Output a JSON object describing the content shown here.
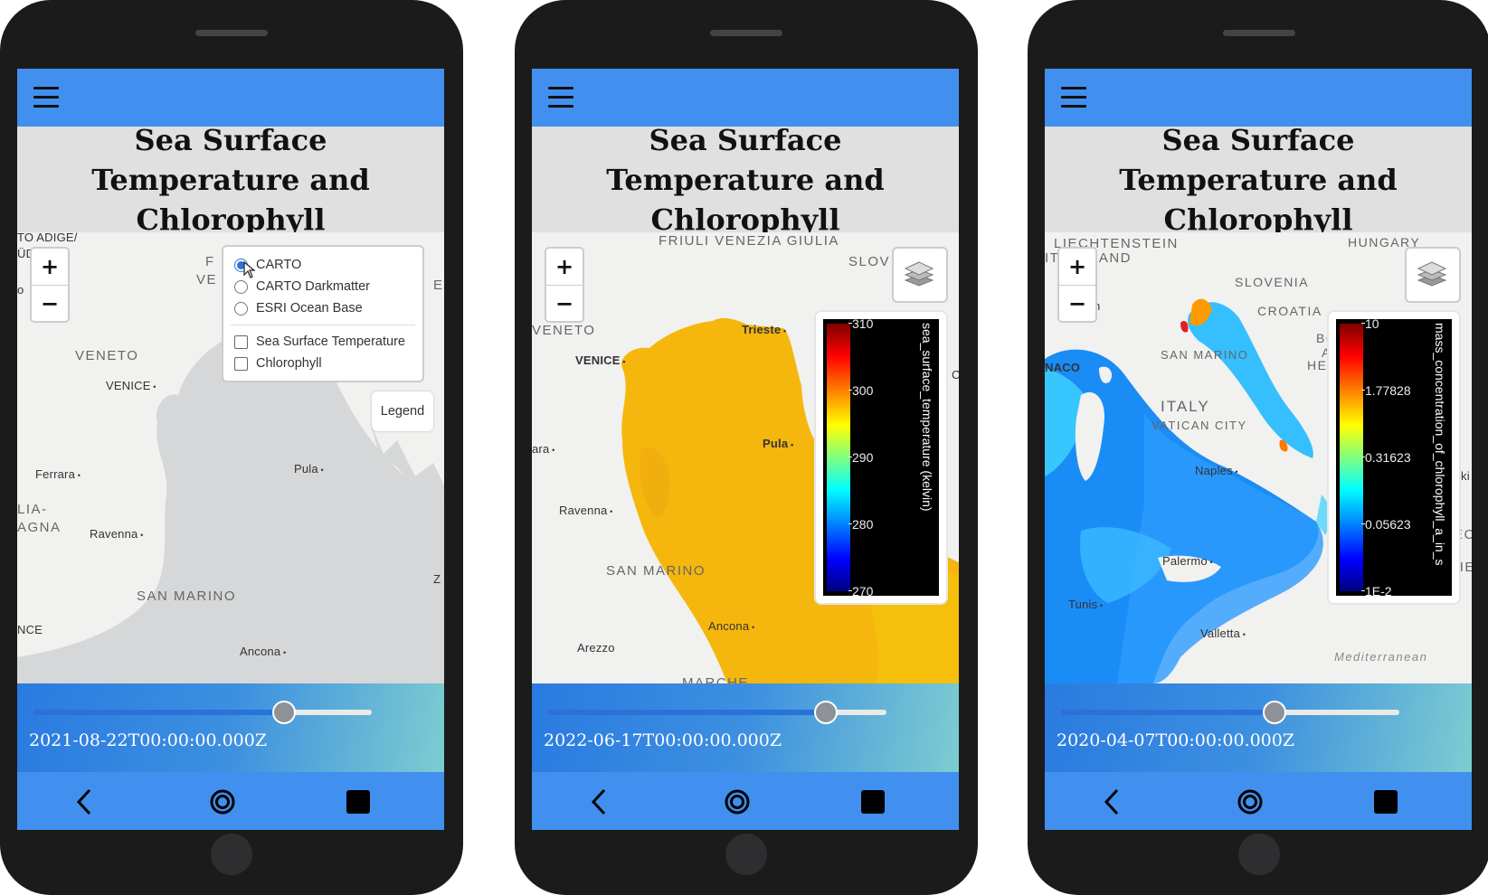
{
  "phones": [
    {
      "title": "Sea Surface Temperature and Chlorophyll",
      "time": "2021-08-22T00:00:00.000Z",
      "slider_fraction": 0.74,
      "places": {
        "p0": "TO ADIGE/",
        "p1": "ÜDTIROL",
        "p2": "VENETO",
        "p3": "VENICE",
        "p4": "Ferrara",
        "p5": "LIA-",
        "p6": "AGNA",
        "p7": "Ravenna",
        "p8": "SAN MARINO",
        "p9": "Ancona",
        "p10": "Pula",
        "p11": "NCE",
        "p12": "F",
        "p13": "VE",
        "p14": "Z",
        "p15": "E",
        "p16": "o"
      },
      "layers": {
        "base": [
          "CARTO",
          "CARTO Darkmatter",
          "ESRI Ocean Base"
        ],
        "overlays": [
          "Sea Surface Temperature",
          "Chlorophyll"
        ],
        "selected_base": "CARTO"
      },
      "legend_label": "Legend"
    },
    {
      "title": "Sea Surface Temperature and Chlorophyll",
      "time": "2022-06-17T00:00:00.000Z",
      "slider_fraction": 0.82,
      "places": {
        "p0": "FRIULI VENEZIA GIULIA",
        "p1": "SLOV",
        "p2": "VENETO",
        "p3": "VENICE",
        "p4": "Trieste",
        "p5": "Pula",
        "p6": "ara",
        "p7": "Ravenna",
        "p8": "SAN MARINO",
        "p9": "Ancona",
        "p10": "Arezzo",
        "p11": "MARCHE",
        "p12": "C"
      },
      "colorbar": {
        "ticks": [
          "310",
          "300",
          "290",
          "280",
          "270"
        ],
        "label": "sea_surface_temperature (kelvin)",
        "colormap": "jet",
        "range": [
          270,
          310
        ]
      }
    },
    {
      "title": "Sea Surface Temperature and Chlorophyll",
      "time": "2020-04-07T00:00:00.000Z",
      "slider_fraction": 0.63,
      "places": {
        "p0": "LIECHTENSTEIN",
        "p1": "IT",
        "p2": "LAND",
        "p3": "HUNGARY",
        "p4": "SLOVENIA",
        "p5": "CROATIA",
        "p6": "NACO",
        "p7": "SAN MARINO",
        "p8": "ITALY",
        "p9": "VATICAN CITY",
        "p10": "Naples",
        "p11": "Palermo",
        "p12": "Tunis",
        "p13": "Valletta",
        "p14": "Mediterranean",
        "p15": "BO",
        "p16": "A",
        "p17": "HERZE",
        "p18": "n",
        "p19": "ki",
        "p20": "EC",
        "p21": "HE"
      },
      "colorbar": {
        "ticks": [
          "10",
          "1.77828",
          "0.31623",
          "0.05623",
          "1E-2"
        ],
        "label": "mass_concentration_of_chlorophyll_a_in_s",
        "colormap": "jet",
        "scale": "log",
        "range": [
          0.01,
          10
        ]
      }
    }
  ],
  "icons": {
    "menu": "hamburger-menu-icon",
    "layers": "layers-icon",
    "back": "back-triangle-icon",
    "home": "home-circle-icon",
    "recent": "recent-square-icon"
  },
  "colors": {
    "topbar": "#4190ef",
    "title_bg": "#dfe0df",
    "sst_fill": "#f7bb0d",
    "chl_fill": "#1a8fff",
    "radio_selected": "#2d73d2"
  }
}
